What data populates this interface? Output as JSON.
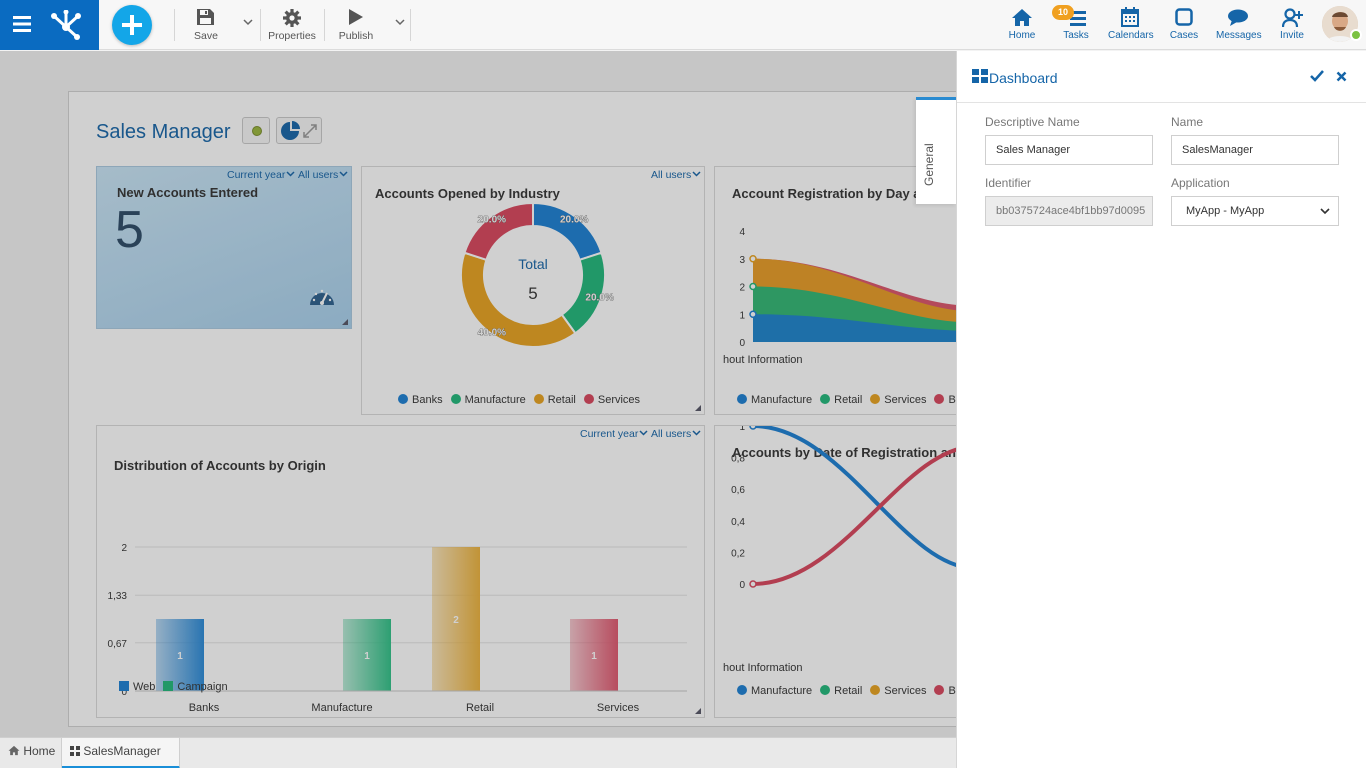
{
  "topbar": {
    "save_label": "Save",
    "properties_label": "Properties",
    "publish_label": "Publish",
    "nav": [
      {
        "label": "Home",
        "icon": "home-icon"
      },
      {
        "label": "Tasks",
        "icon": "tasks-icon",
        "badge": "10"
      },
      {
        "label": "Calendars",
        "icon": "calendar-icon"
      },
      {
        "label": "Cases",
        "icon": "cases-icon"
      },
      {
        "label": "Messages",
        "icon": "messages-icon"
      },
      {
        "label": "Invite",
        "icon": "invite-icon"
      }
    ],
    "user_status_color": "#7cc242"
  },
  "dashboard": {
    "title": "Sales Manager",
    "widgets": {
      "new_accounts": {
        "title": "New Accounts Entered",
        "value": "5",
        "filter_period": "Current year",
        "filter_users": "All users"
      },
      "by_industry": {
        "title": "Accounts Opened by Industry",
        "filter_users": "All users",
        "center_label": "Total",
        "center_value": "5"
      },
      "by_day": {
        "title": "Account Registration by Day a",
        "x_label": "hout Information"
      },
      "by_origin": {
        "title": "Distribution of Accounts by Origin",
        "filter_period": "Current year",
        "filter_users": "All users"
      },
      "by_date": {
        "title": "Accounts by Date of Registration and",
        "x_label": "hout Information"
      }
    }
  },
  "chart_data": [
    {
      "type": "pie",
      "title": "Accounts Opened by Industry",
      "categories": [
        "Banks",
        "Manufacture",
        "Retail",
        "Services"
      ],
      "values": [
        20.0,
        20.0,
        40.0,
        20.0
      ],
      "data_labels": [
        "20.0%",
        "20.0%",
        "40.0%",
        "20.0%"
      ],
      "colors": [
        "#1a7fd4",
        "#1fb87a",
        "#e8a21e",
        "#d9455c"
      ],
      "legend": "bottom"
    },
    {
      "type": "area",
      "title": "Account Registration by Day a",
      "series": [
        {
          "name": "Manufacture",
          "values": [
            1,
            0.4
          ]
        },
        {
          "name": "Retail",
          "values": [
            2,
            0.7
          ]
        },
        {
          "name": "Services",
          "values": [
            3,
            1.1
          ]
        },
        {
          "name": "Ba",
          "values": [
            3,
            1.3
          ]
        }
      ],
      "yticks": [
        "0",
        "1",
        "2",
        "3",
        "4"
      ],
      "ylim": [
        0,
        4
      ],
      "colors": [
        "#1a7fd4",
        "#1fb87a",
        "#e8a21e",
        "#d9455c"
      ],
      "legend": "bottom"
    },
    {
      "type": "bar",
      "title": "Distribution of Accounts by Origin",
      "categories": [
        "Banks",
        "Manufacture",
        "Retail",
        "Services"
      ],
      "values": [
        1,
        1,
        2,
        1
      ],
      "data_labels": [
        "1",
        "1",
        "2",
        "1"
      ],
      "colors": [
        "#2a8ad8",
        "#2fc187",
        "#edb23b",
        "#e0576e"
      ],
      "yticks": [
        "0",
        "0,67",
        "1,33",
        "2"
      ],
      "ylim": [
        0,
        2
      ],
      "legend_items": [
        {
          "name": "Web",
          "color": "#1a7fd4"
        },
        {
          "name": "Campaign",
          "color": "#1fb87a"
        }
      ]
    },
    {
      "type": "line",
      "title": "Accounts by Date of Registration and",
      "series": [
        {
          "name": "Manufacture",
          "values": [
            1,
            0.1
          ],
          "color": "#1a7fd4"
        },
        {
          "name": "Ba",
          "values": [
            0,
            0.87
          ],
          "color": "#d9455c"
        }
      ],
      "yticks": [
        "0",
        "0,2",
        "0,4",
        "0,6",
        "0,8",
        "1"
      ],
      "ylim": [
        0,
        1
      ],
      "legend_items": [
        {
          "name": "Manufacture",
          "color": "#1a7fd4"
        },
        {
          "name": "Retail",
          "color": "#1fb87a"
        },
        {
          "name": "Services",
          "color": "#e8a21e"
        },
        {
          "name": "Ba",
          "color": "#d9455c"
        }
      ]
    }
  ],
  "bottom_tabs": [
    {
      "label": "Home"
    },
    {
      "label": "SalesManager"
    }
  ],
  "panel": {
    "title": "Dashboard",
    "tab_general": "General",
    "descriptive_name_label": "Descriptive Name",
    "descriptive_name_value": "Sales Manager",
    "name_label": "Name",
    "name_value": "SalesManager",
    "identifier_label": "Identifier",
    "identifier_value": "bb0375724ace4bf1bb97d0095",
    "application_label": "Application",
    "application_value": "MyApp - MyApp"
  }
}
